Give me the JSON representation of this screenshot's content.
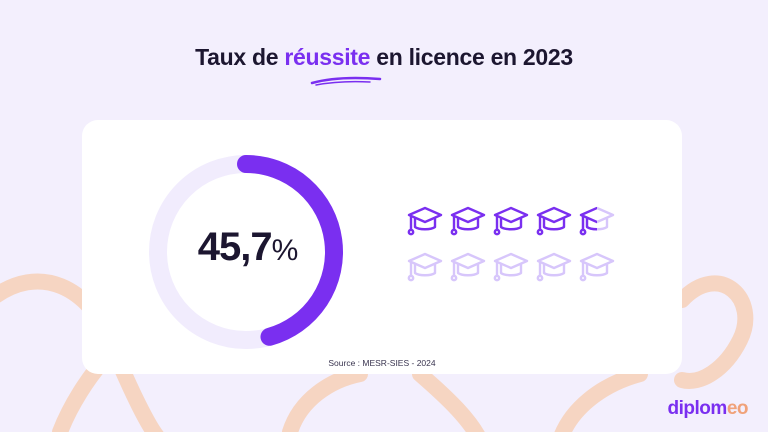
{
  "header": {
    "title_before": "Taux de",
    "title_highlight": "réussite",
    "title_after": "en licence en 2023"
  },
  "chart_data": {
    "type": "pie",
    "title": "Taux de réussite en licence en 2023",
    "value": 45.7,
    "value_label": "45,7",
    "unit": "%",
    "icon_count": 10,
    "icon_filled": 4.5
  },
  "source": "Source : MESR-SIES - 2024",
  "logo": {
    "main": "diplom",
    "accent": "eo"
  },
  "colors": {
    "accent": "#7a2ff0",
    "track": "#f1ecfd",
    "cap_empty": "#d7c6fb",
    "background": "#f3effd",
    "decor": "#f6d5c2"
  },
  "icons": {
    "cap": "graduation-cap-icon"
  }
}
